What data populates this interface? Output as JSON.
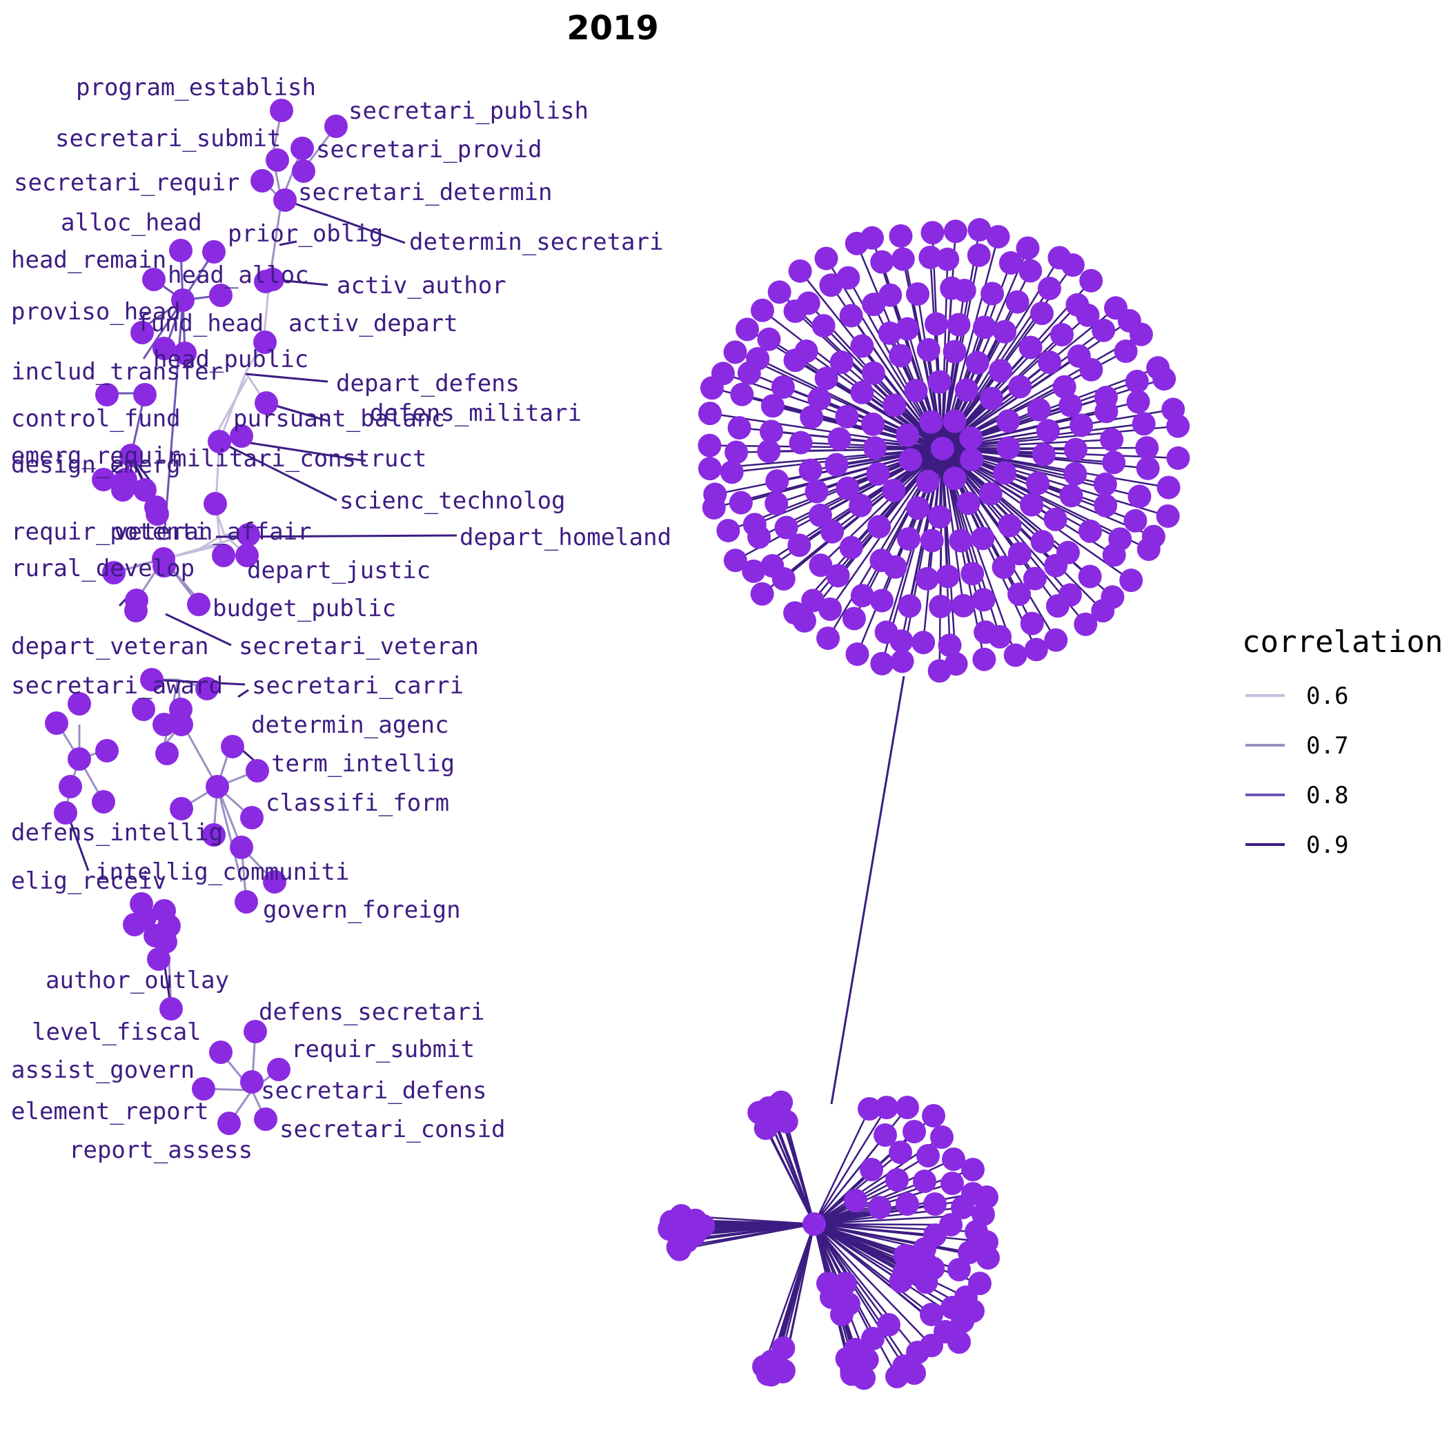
{
  "title": "2019",
  "colors": {
    "node": "#8a2be2",
    "edge_06": "#c4bedd",
    "edge_07": "#9c8fc4",
    "edge_08": "#6e55b6",
    "edge_09": "#3d1c82"
  },
  "legend": {
    "title": "correlation",
    "items": [
      {
        "label": "0.6",
        "color": "#c4bedd"
      },
      {
        "label": "0.7",
        "color": "#9c8fc4"
      },
      {
        "label": "0.8",
        "color": "#6e55b6"
      },
      {
        "label": "0.9",
        "color": "#3d1c82"
      }
    ]
  },
  "node_labels": [
    "program_establish",
    "secretari_publish",
    "secretari_submit",
    "secretari_provid",
    "secretari_requir",
    "secretari_determin",
    "alloc_head",
    "prior_oblig",
    "determin_secretari",
    "head_remain",
    "head_alloc",
    "activ_author",
    "proviso_head",
    "fund_head",
    "activ_depart",
    "head_public",
    "includ_transfer",
    "depart_defens",
    "control_fund",
    "pursuant_balanc",
    "defens_militari",
    "emerg_requir",
    "militari_construct",
    "design_emerg",
    "scienc_technolog",
    "requir_potenti",
    "veteran_affair",
    "depart_homeland",
    "rural_develop",
    "depart_justic",
    "budget_public",
    "depart_veteran",
    "secretari_veteran",
    "secretari_award",
    "secretari_carri",
    "determin_agenc",
    "term_intellig",
    "classifi_form",
    "defens_intellig",
    "intellig_communiti",
    "elig_receiv",
    "govern_foreign",
    "author_outlay",
    "defens_secretari",
    "level_fiscal",
    "requir_submit",
    "assist_govern",
    "secretari_defens",
    "element_report",
    "secretari_consid",
    "report_assess"
  ]
}
